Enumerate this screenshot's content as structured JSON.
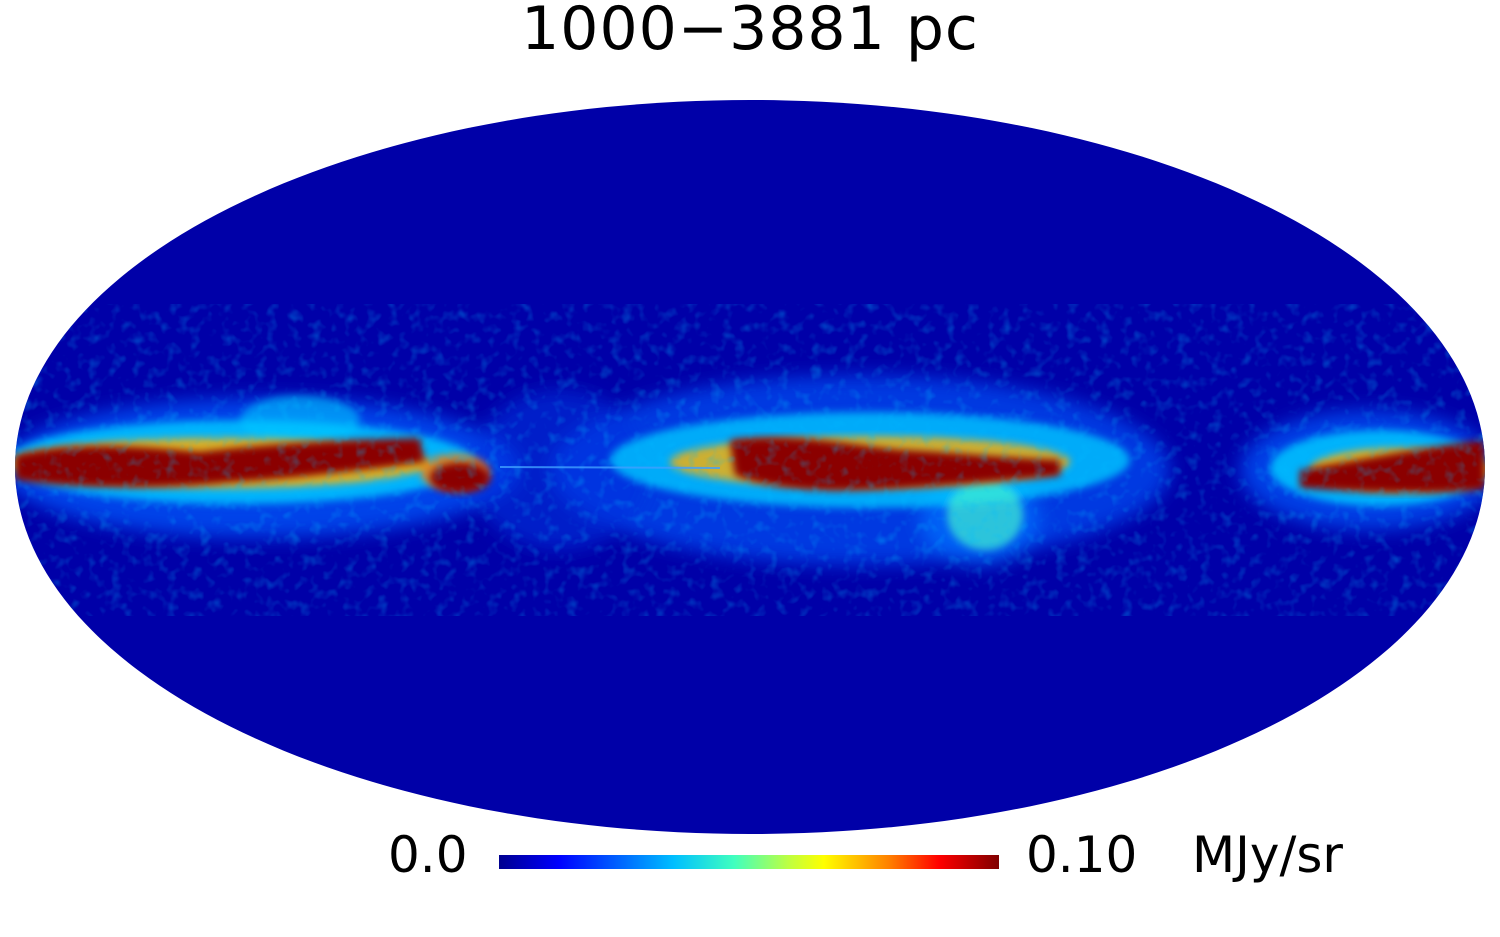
{
  "title": "1000−3881 pc",
  "colorbar": {
    "min_label": "0.0",
    "max_label": "0.10",
    "unit": "MJy/sr",
    "min_value": 0.0,
    "max_value": 0.1,
    "colormap": [
      "#00008f",
      "#0000ff",
      "#00bfff",
      "#40ffbf",
      "#bfff40",
      "#ffff00",
      "#ff8000",
      "#ff0000",
      "#800000"
    ]
  },
  "map": {
    "projection": "mollweide",
    "background_color": "#0000a8",
    "high_color": "#8b0000"
  }
}
